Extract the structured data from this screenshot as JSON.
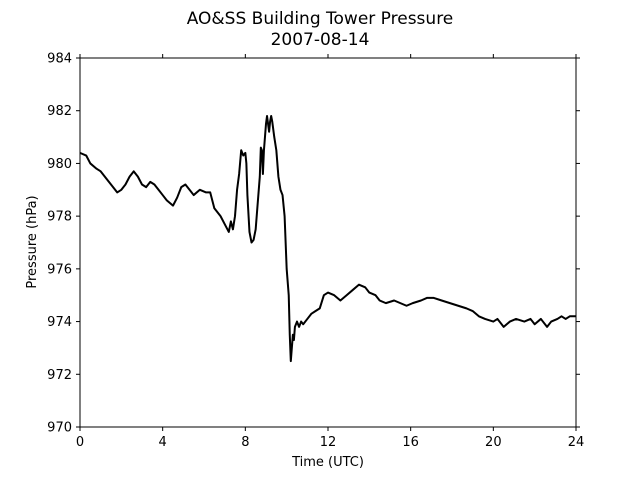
{
  "chart_data": {
    "type": "line",
    "title": "AO&SS Building Tower Pressure",
    "subtitle": "2007-08-14",
    "xlabel": "Time (UTC)",
    "ylabel": "Pressure (hPa)",
    "xlim": [
      0,
      24
    ],
    "ylim": [
      970,
      984
    ],
    "xticks": [
      0,
      4,
      8,
      12,
      16,
      20,
      24
    ],
    "yticks": [
      970,
      972,
      974,
      976,
      978,
      980,
      982,
      984
    ],
    "grid": false,
    "line_color": "#000000",
    "series": [
      {
        "points": [
          [
            0.0,
            980.4
          ],
          [
            0.3,
            980.3
          ],
          [
            0.5,
            980.0
          ],
          [
            0.8,
            979.8
          ],
          [
            1.0,
            979.7
          ],
          [
            1.2,
            979.5
          ],
          [
            1.4,
            979.3
          ],
          [
            1.6,
            979.1
          ],
          [
            1.8,
            978.9
          ],
          [
            2.0,
            979.0
          ],
          [
            2.2,
            979.2
          ],
          [
            2.4,
            979.5
          ],
          [
            2.6,
            979.7
          ],
          [
            2.8,
            979.5
          ],
          [
            3.0,
            979.2
          ],
          [
            3.2,
            979.1
          ],
          [
            3.4,
            979.3
          ],
          [
            3.6,
            979.2
          ],
          [
            3.8,
            979.0
          ],
          [
            4.0,
            978.8
          ],
          [
            4.2,
            978.6
          ],
          [
            4.5,
            978.4
          ],
          [
            4.7,
            978.7
          ],
          [
            4.9,
            979.1
          ],
          [
            5.1,
            979.2
          ],
          [
            5.3,
            979.0
          ],
          [
            5.5,
            978.8
          ],
          [
            5.8,
            979.0
          ],
          [
            6.1,
            978.9
          ],
          [
            6.3,
            978.9
          ],
          [
            6.5,
            978.3
          ],
          [
            6.8,
            978.0
          ],
          [
            7.0,
            977.7
          ],
          [
            7.2,
            977.4
          ],
          [
            7.3,
            977.8
          ],
          [
            7.4,
            977.5
          ],
          [
            7.5,
            978.0
          ],
          [
            7.6,
            979.0
          ],
          [
            7.7,
            979.6
          ],
          [
            7.8,
            980.5
          ],
          [
            7.9,
            980.3
          ],
          [
            8.0,
            980.4
          ],
          [
            8.05,
            980.0
          ],
          [
            8.1,
            978.8
          ],
          [
            8.2,
            977.4
          ],
          [
            8.3,
            977.0
          ],
          [
            8.4,
            977.1
          ],
          [
            8.5,
            977.5
          ],
          [
            8.6,
            978.5
          ],
          [
            8.7,
            979.5
          ],
          [
            8.75,
            980.6
          ],
          [
            8.8,
            980.5
          ],
          [
            8.85,
            979.6
          ],
          [
            8.9,
            980.5
          ],
          [
            9.0,
            981.5
          ],
          [
            9.05,
            981.8
          ],
          [
            9.1,
            981.5
          ],
          [
            9.15,
            981.2
          ],
          [
            9.2,
            981.6
          ],
          [
            9.25,
            981.8
          ],
          [
            9.3,
            981.6
          ],
          [
            9.4,
            981.0
          ],
          [
            9.5,
            980.5
          ],
          [
            9.6,
            979.5
          ],
          [
            9.7,
            979.0
          ],
          [
            9.8,
            978.8
          ],
          [
            9.9,
            978.0
          ],
          [
            10.0,
            976.0
          ],
          [
            10.1,
            975.0
          ],
          [
            10.15,
            973.5
          ],
          [
            10.2,
            972.5
          ],
          [
            10.25,
            973.0
          ],
          [
            10.3,
            973.5
          ],
          [
            10.35,
            973.3
          ],
          [
            10.4,
            973.8
          ],
          [
            10.5,
            974.0
          ],
          [
            10.6,
            973.8
          ],
          [
            10.7,
            974.0
          ],
          [
            10.8,
            973.9
          ],
          [
            11.0,
            974.1
          ],
          [
            11.2,
            974.3
          ],
          [
            11.4,
            974.4
          ],
          [
            11.6,
            974.5
          ],
          [
            11.8,
            975.0
          ],
          [
            12.0,
            975.1
          ],
          [
            12.3,
            975.0
          ],
          [
            12.6,
            974.8
          ],
          [
            12.9,
            975.0
          ],
          [
            13.2,
            975.2
          ],
          [
            13.5,
            975.4
          ],
          [
            13.8,
            975.3
          ],
          [
            14.0,
            975.1
          ],
          [
            14.3,
            975.0
          ],
          [
            14.5,
            974.8
          ],
          [
            14.8,
            974.7
          ],
          [
            15.2,
            974.8
          ],
          [
            15.5,
            974.7
          ],
          [
            15.8,
            974.6
          ],
          [
            16.1,
            974.7
          ],
          [
            16.5,
            974.8
          ],
          [
            16.8,
            974.9
          ],
          [
            17.1,
            974.9
          ],
          [
            17.5,
            974.8
          ],
          [
            17.9,
            974.7
          ],
          [
            18.3,
            974.6
          ],
          [
            18.7,
            974.5
          ],
          [
            19.0,
            974.4
          ],
          [
            19.3,
            974.2
          ],
          [
            19.6,
            974.1
          ],
          [
            20.0,
            974.0
          ],
          [
            20.2,
            974.1
          ],
          [
            20.5,
            973.8
          ],
          [
            20.8,
            974.0
          ],
          [
            21.1,
            974.1
          ],
          [
            21.5,
            974.0
          ],
          [
            21.8,
            974.1
          ],
          [
            22.0,
            973.9
          ],
          [
            22.3,
            974.1
          ],
          [
            22.6,
            973.8
          ],
          [
            22.8,
            974.0
          ],
          [
            23.1,
            974.1
          ],
          [
            23.3,
            974.2
          ],
          [
            23.5,
            974.1
          ],
          [
            23.7,
            974.2
          ],
          [
            24.0,
            974.2
          ]
        ]
      }
    ]
  }
}
